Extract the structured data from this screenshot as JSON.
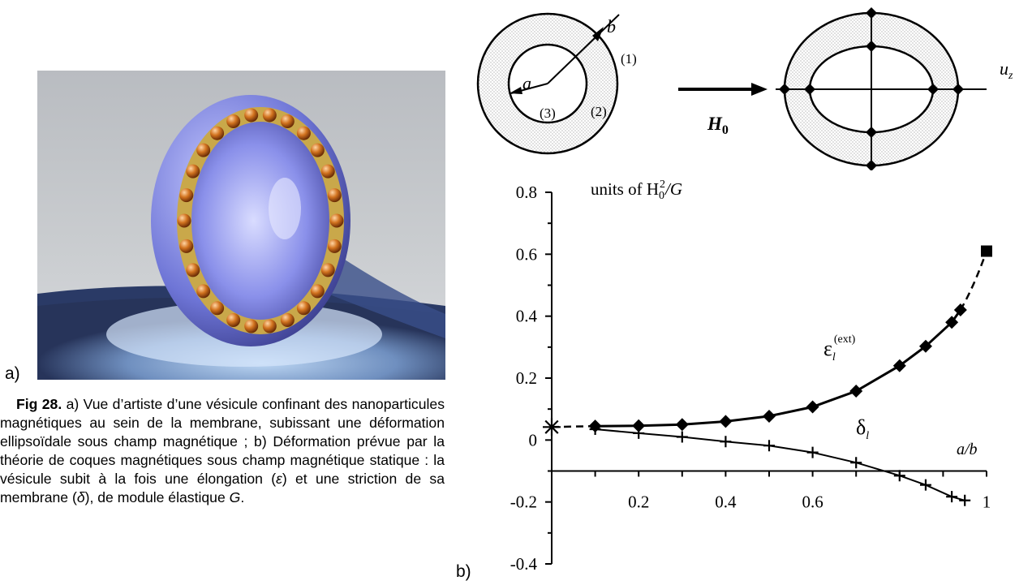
{
  "panel_a": {
    "label": "a)",
    "image_description_icon": "vesicle-render"
  },
  "panel_b": {
    "label": "b)"
  },
  "caption": {
    "fig_number": "Fig 28.",
    "part1": " a) Vue d’artiste d’une vésicule confinant des nanoparticules magnétiques au sein de la membrane, subissant une déformation ellipsoïdale sous champ magnétique ; b) Déformation prévue par la théorie de coques magnétiques sous champ magnétique statique : la vésicule subit à la fois une élongation (",
    "var_e": "ε",
    "part2": ") et une striction de sa membrane (",
    "var_d": "δ",
    "part3": "), de module élastique ",
    "var_g": "G",
    "part4": "."
  },
  "schematic": {
    "label_b": "b",
    "label_a": "a",
    "region1": "(1)",
    "region2": "(2)",
    "region3": "(3)",
    "field": "H",
    "field_sub": "0",
    "axis_u": "u",
    "axis_u_sub": "z"
  },
  "chart_data": {
    "type": "line",
    "ylim": [
      -0.4,
      0.8
    ],
    "xlim": [
      0,
      1
    ],
    "y_ticks": [
      -0.4,
      -0.2,
      0,
      0.2,
      0.4,
      0.6,
      0.8
    ],
    "y_tick_labels": [
      "-0.4",
      "-0.2",
      "0",
      "0.2",
      "0.4",
      "0.6",
      "0.8"
    ],
    "x_ticks": [
      0.2,
      0.4,
      0.6,
      1
    ],
    "x_tick_labels": [
      "0.2",
      "0.4",
      "0.6",
      "1"
    ],
    "xlabel": "a/b",
    "units_label_prefix": "units of H",
    "units_label_sub": "0",
    "units_label_sup": "2",
    "units_label_suffix": "/G",
    "series": [
      {
        "name": "ε",
        "label_sub": "l",
        "label_sup": "(ext)",
        "marker": "diamond",
        "points": [
          [
            0.1,
            0.045
          ],
          [
            0.2,
            0.046
          ],
          [
            0.3,
            0.05
          ],
          [
            0.4,
            0.06
          ],
          [
            0.5,
            0.077
          ],
          [
            0.6,
            0.107
          ],
          [
            0.7,
            0.158
          ],
          [
            0.8,
            0.24
          ],
          [
            0.86,
            0.303
          ],
          [
            0.92,
            0.38
          ],
          [
            0.94,
            0.42
          ]
        ],
        "extrapolated_end": [
          1.0,
          0.61
        ],
        "extrapolated_start": [
          0.0,
          0.042
        ]
      },
      {
        "name": "δ",
        "label_sub": "l",
        "marker": "plus",
        "points": [
          [
            0.1,
            0.035
          ],
          [
            0.2,
            0.022
          ],
          [
            0.3,
            0.01
          ],
          [
            0.4,
            -0.005
          ],
          [
            0.5,
            -0.018
          ],
          [
            0.6,
            -0.04
          ],
          [
            0.7,
            -0.073
          ],
          [
            0.8,
            -0.115
          ],
          [
            0.86,
            -0.145
          ],
          [
            0.92,
            -0.183
          ],
          [
            0.95,
            -0.195
          ]
        ]
      }
    ]
  }
}
